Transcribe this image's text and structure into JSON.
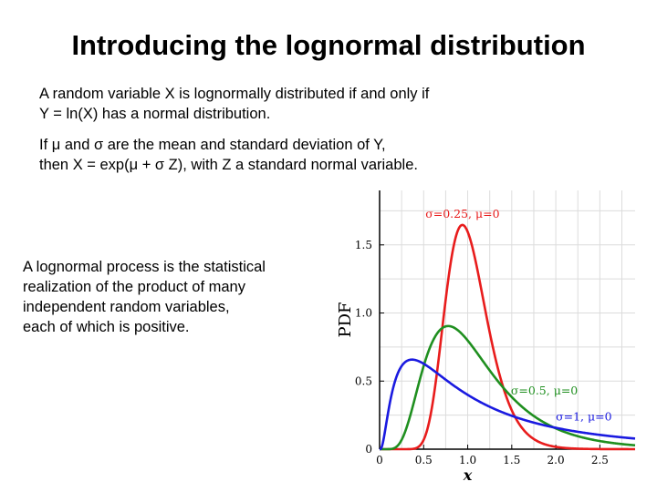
{
  "slide": {
    "title": "Introducing the lognormal distribution",
    "para1": [
      "A random variable X is lognormally distributed if and only if",
      "Y = ln(X) has a normal distribution."
    ],
    "para2": [
      "If μ and σ are the mean and standard deviation of Y,",
      "then X = exp(μ + σ Z), with Z a standard normal variable."
    ],
    "para3": [
      "A lognormal process is the statistical",
      "realization of the product of many",
      "independent random variables,",
      "each of which is positive."
    ]
  },
  "chart_data": {
    "type": "line",
    "title": "",
    "xlabel": "x",
    "ylabel": "PDF",
    "xlim": [
      0,
      2.9
    ],
    "ylim": [
      0,
      1.9
    ],
    "xticks": [
      "0",
      "0.5",
      "1.0",
      "1.5",
      "2.0",
      "2.5"
    ],
    "xtick_values": [
      0,
      0.5,
      1.0,
      1.5,
      2.0,
      2.5
    ],
    "yticks": [
      "0",
      "0.5",
      "1.0",
      "1.5"
    ],
    "ytick_values": [
      0,
      0.5,
      1.0,
      1.5
    ],
    "grid": true,
    "series": [
      {
        "name": "σ=0.25, μ=0",
        "sigma": 0.25,
        "mu": 0,
        "color": "#e81c1c"
      },
      {
        "name": "σ=0.5, μ=0",
        "sigma": 0.5,
        "mu": 0,
        "color": "#1f8f1f"
      },
      {
        "name": "σ=1, μ=0",
        "sigma": 1,
        "mu": 0,
        "color": "#1a1ae0"
      }
    ]
  }
}
